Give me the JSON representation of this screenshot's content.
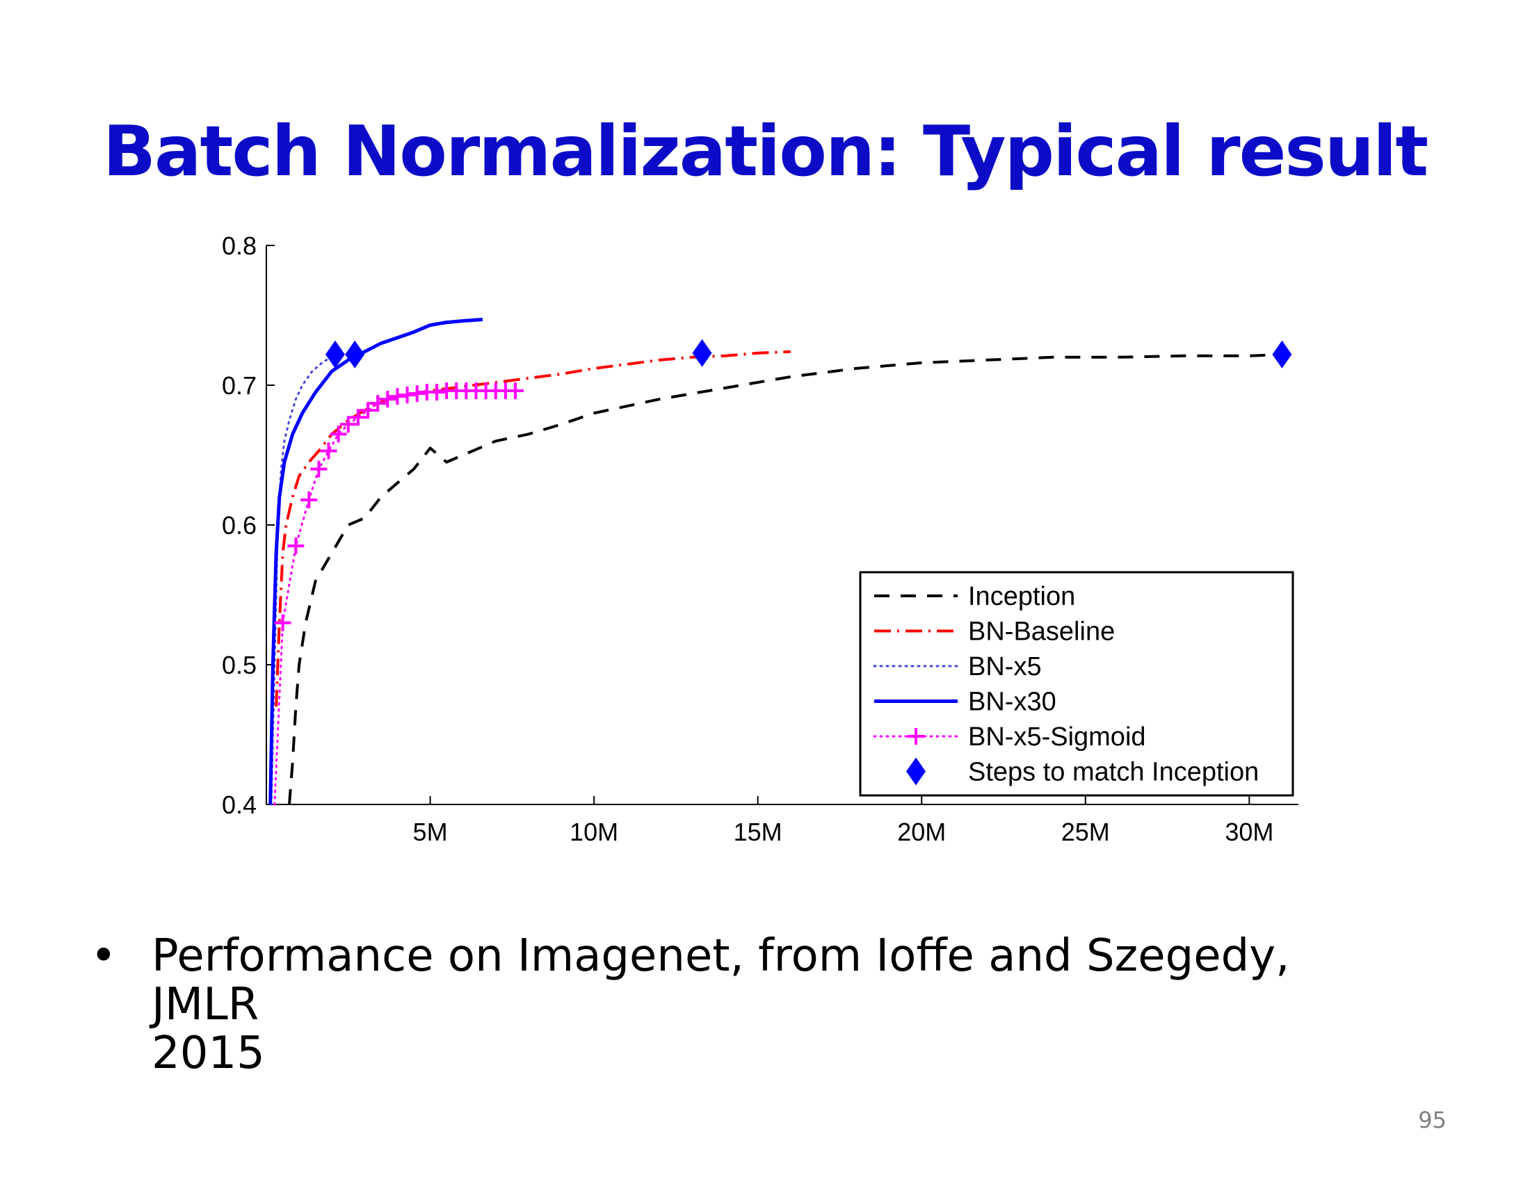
{
  "slide": {
    "title": "Batch Normalization: Typical result",
    "bullet_symbol": "•",
    "bullet_text": "Performance on Imagenet, from Ioffe and Szegedy,  JMLR\n2015",
    "page_number": "95"
  },
  "chart_data": {
    "type": "line",
    "title": "",
    "xlabel": "",
    "ylabel": "",
    "xlim": [
      0,
      31500000
    ],
    "ylim": [
      0.4,
      0.8
    ],
    "x_ticks": [
      {
        "value": 5000000,
        "label": "5M"
      },
      {
        "value": 10000000,
        "label": "10M"
      },
      {
        "value": 15000000,
        "label": "15M"
      },
      {
        "value": 20000000,
        "label": "20M"
      },
      {
        "value": 25000000,
        "label": "25M"
      },
      {
        "value": 30000000,
        "label": "30M"
      }
    ],
    "y_ticks": [
      {
        "value": 0.4,
        "label": "0.4"
      },
      {
        "value": 0.5,
        "label": "0.5"
      },
      {
        "value": 0.6,
        "label": "0.6"
      },
      {
        "value": 0.7,
        "label": "0.7"
      },
      {
        "value": 0.8,
        "label": "0.8"
      }
    ],
    "grid": false,
    "legend_position": "bottom-right",
    "series": [
      {
        "name": "Inception",
        "color": "#000000",
        "style": "dashed",
        "x": [
          700000,
          800000,
          900000,
          1000000,
          1200000,
          1500000,
          2000000,
          2500000,
          3000000,
          3500000,
          4000000,
          4500000,
          5000000,
          5500000,
          6000000,
          7000000,
          8000000,
          9000000,
          10000000,
          12000000,
          14000000,
          16000000,
          18000000,
          20000000,
          22000000,
          24000000,
          26000000,
          28000000,
          30000000,
          31000000
        ],
        "y": [
          0.4,
          0.43,
          0.47,
          0.5,
          0.53,
          0.56,
          0.58,
          0.6,
          0.605,
          0.62,
          0.63,
          0.64,
          0.655,
          0.645,
          0.65,
          0.66,
          0.665,
          0.672,
          0.68,
          0.69,
          0.698,
          0.706,
          0.712,
          0.716,
          0.718,
          0.72,
          0.72,
          0.721,
          0.721,
          0.722
        ]
      },
      {
        "name": "BN-Baseline",
        "color": "#ff0000",
        "style": "dashdot",
        "x": [
          300000,
          400000,
          500000,
          600000,
          800000,
          1000000,
          1300000,
          1600000,
          2000000,
          2500000,
          3000000,
          3500000,
          4000000,
          5000000,
          6000000,
          7000000,
          8000000,
          9000000,
          10000000,
          11000000,
          12000000,
          13000000,
          14000000,
          15000000,
          16000000
        ],
        "y": [
          0.47,
          0.53,
          0.58,
          0.6,
          0.62,
          0.635,
          0.645,
          0.653,
          0.665,
          0.675,
          0.682,
          0.688,
          0.692,
          0.696,
          0.699,
          0.702,
          0.705,
          0.708,
          0.712,
          0.715,
          0.718,
          0.72,
          0.721,
          0.723,
          0.724
        ]
      },
      {
        "name": "BN-x5",
        "color": "#4444dd",
        "style": "dotted",
        "x": [
          150000,
          250000,
          350000,
          450000,
          550000,
          700000,
          900000,
          1100000,
          1400000,
          1700000,
          2100000
        ],
        "y": [
          0.4,
          0.5,
          0.6,
          0.64,
          0.66,
          0.675,
          0.69,
          0.7,
          0.71,
          0.716,
          0.722
        ]
      },
      {
        "name": "BN-x30",
        "color": "#0000ff",
        "style": "solid",
        "x": [
          120000,
          200000,
          300000,
          400000,
          550000,
          800000,
          1100000,
          1500000,
          2000000,
          2500000,
          3000000,
          3500000,
          4000000,
          4500000,
          5000000,
          5500000,
          6000000,
          6600000
        ],
        "y": [
          0.4,
          0.5,
          0.58,
          0.62,
          0.645,
          0.665,
          0.68,
          0.695,
          0.71,
          0.718,
          0.724,
          0.73,
          0.734,
          0.738,
          0.743,
          0.745,
          0.746,
          0.747
        ]
      },
      {
        "name": "BN-x5-Sigmoid",
        "color": "#ff00ff",
        "style": "dotted-plus",
        "x": [
          250000,
          500000,
          900000,
          1300000,
          1600000,
          1900000,
          2200000,
          2500000,
          2800000,
          3100000,
          3400000,
          3700000,
          4000000,
          4300000,
          4600000,
          4900000,
          5200000,
          5500000,
          5800000,
          6100000,
          6400000,
          6700000,
          7000000,
          7300000,
          7600000
        ],
        "y": [
          0.4,
          0.53,
          0.585,
          0.618,
          0.64,
          0.653,
          0.665,
          0.672,
          0.677,
          0.682,
          0.687,
          0.69,
          0.692,
          0.693,
          0.694,
          0.695,
          0.695,
          0.696,
          0.696,
          0.696,
          0.696,
          0.696,
          0.696,
          0.696,
          0.696
        ]
      },
      {
        "name": "Steps to match Inception",
        "color": "#0000ff",
        "style": "diamond-markers",
        "x": [
          2100000,
          2700000,
          13300000,
          31000000
        ],
        "y": [
          0.722,
          0.722,
          0.723,
          0.722
        ]
      }
    ]
  }
}
